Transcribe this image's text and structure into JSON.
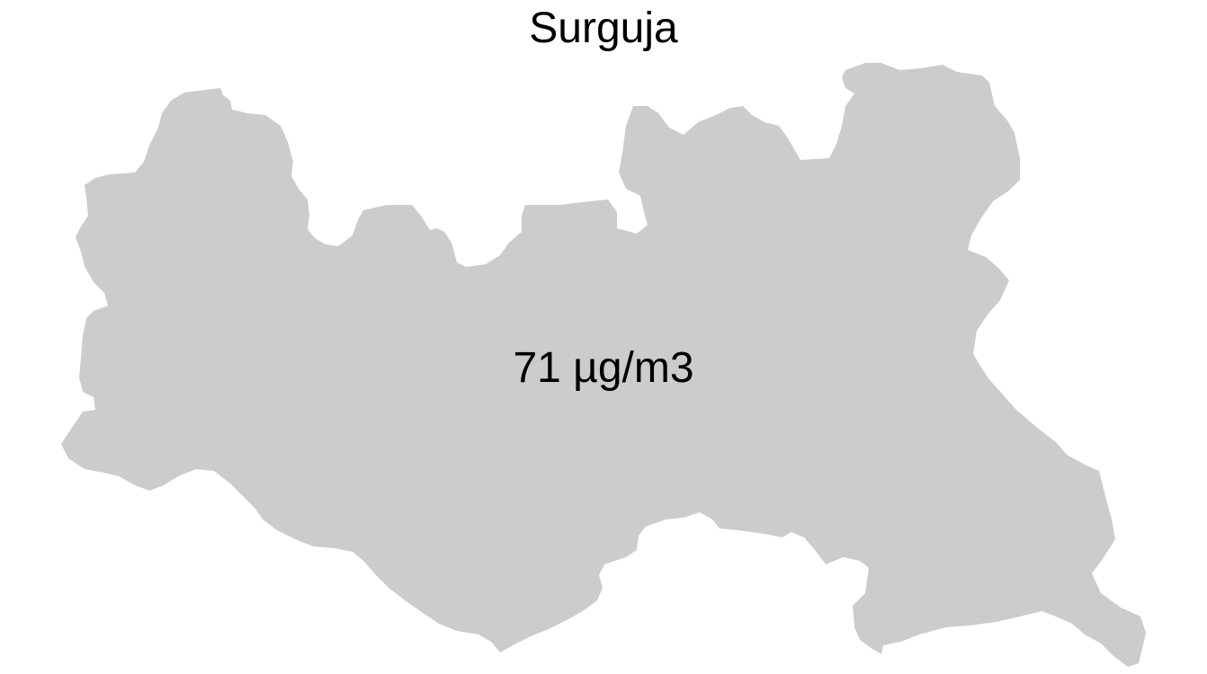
{
  "map": {
    "title": "Surguja",
    "region_color": "#cccccc",
    "value_label": "71 µg/m3"
  }
}
